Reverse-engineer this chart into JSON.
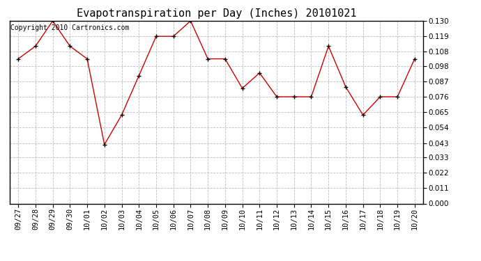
{
  "title": "Evapotranspiration per Day (Inches) 20101021",
  "copyright_text": "Copyright 2010 Cartronics.com",
  "x_labels": [
    "09/27",
    "09/28",
    "09/29",
    "09/30",
    "10/01",
    "10/02",
    "10/03",
    "10/04",
    "10/05",
    "10/06",
    "10/07",
    "10/08",
    "10/09",
    "10/10",
    "10/11",
    "10/12",
    "10/13",
    "10/14",
    "10/15",
    "10/16",
    "10/17",
    "10/18",
    "10/19",
    "10/20"
  ],
  "y_values": [
    0.103,
    0.112,
    0.13,
    0.112,
    0.103,
    0.042,
    0.063,
    0.091,
    0.119,
    0.119,
    0.13,
    0.103,
    0.103,
    0.082,
    0.093,
    0.076,
    0.076,
    0.076,
    0.112,
    0.083,
    0.063,
    0.076,
    0.076,
    0.103
  ],
  "line_color": "#cc0000",
  "marker": "+",
  "marker_size": 5,
  "marker_color": "#000000",
  "background_color": "#ffffff",
  "grid_color": "#bbbbbb",
  "y_min": 0.0,
  "y_max": 0.13,
  "y_ticks": [
    0.0,
    0.011,
    0.022,
    0.033,
    0.043,
    0.054,
    0.065,
    0.076,
    0.087,
    0.098,
    0.108,
    0.119,
    0.13
  ],
  "title_fontsize": 11,
  "tick_fontsize": 7.5,
  "copyright_fontsize": 7
}
